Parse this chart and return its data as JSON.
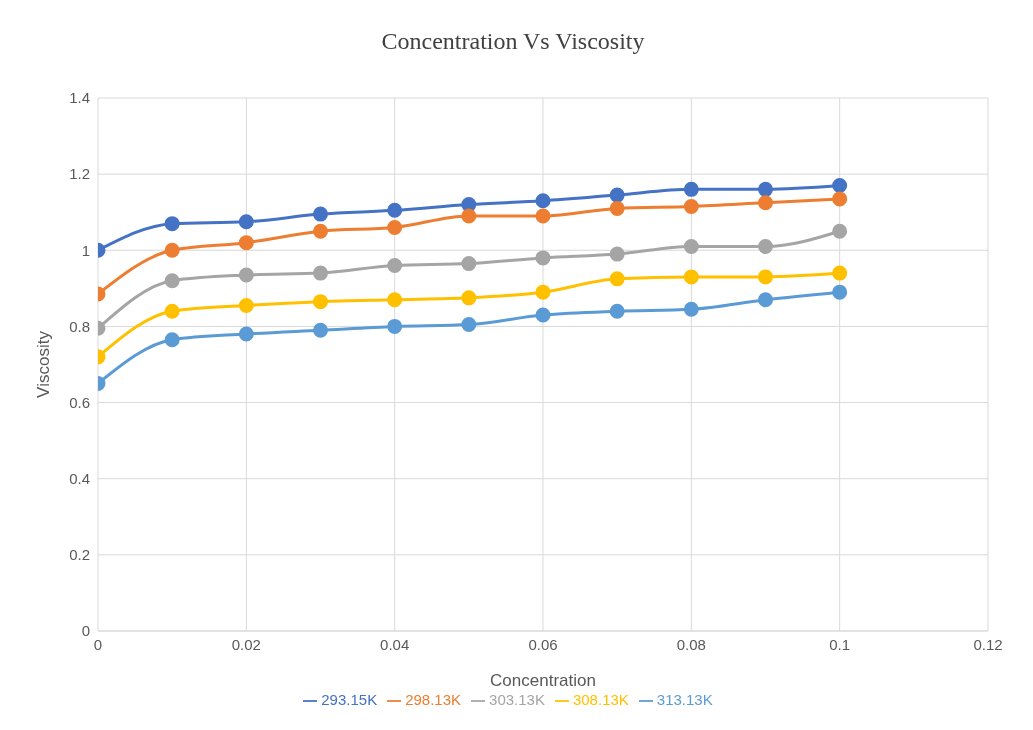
{
  "chart_data": {
    "type": "line",
    "title": "Concentration Vs Viscosity",
    "xlabel": "Concentration",
    "ylabel": "Viscosity",
    "x": [
      0,
      0.01,
      0.02,
      0.03,
      0.04,
      0.05,
      0.06,
      0.07,
      0.08,
      0.09,
      0.1
    ],
    "series": [
      {
        "name": "293.15K",
        "color": "#4472c4",
        "values": [
          1.0,
          1.07,
          1.075,
          1.095,
          1.105,
          1.12,
          1.13,
          1.145,
          1.16,
          1.16,
          1.17
        ]
      },
      {
        "name": "298.13K",
        "color": "#ed7d31",
        "values": [
          0.885,
          1.0,
          1.02,
          1.05,
          1.06,
          1.09,
          1.09,
          1.11,
          1.115,
          1.125,
          1.135
        ]
      },
      {
        "name": "303.13K",
        "color": "#a5a5a5",
        "values": [
          0.795,
          0.92,
          0.935,
          0.94,
          0.96,
          0.965,
          0.98,
          0.99,
          1.01,
          1.01,
          1.05
        ]
      },
      {
        "name": "308.13K",
        "color": "#ffc000",
        "values": [
          0.72,
          0.84,
          0.855,
          0.865,
          0.87,
          0.875,
          0.89,
          0.925,
          0.93,
          0.93,
          0.94
        ]
      },
      {
        "name": "313.13K",
        "color": "#5b9bd5",
        "values": [
          0.65,
          0.765,
          0.78,
          0.79,
          0.8,
          0.805,
          0.83,
          0.84,
          0.845,
          0.87,
          0.89
        ]
      }
    ],
    "xlim": [
      0,
      0.12
    ],
    "xticks": [
      0,
      0.02,
      0.04,
      0.06,
      0.08,
      0.1,
      0.12
    ],
    "ylim": [
      0,
      1.4
    ],
    "yticks": [
      0,
      0.2,
      0.4,
      0.6,
      0.8,
      1,
      1.2,
      1.4
    ],
    "grid": true,
    "legend": "bottom",
    "marker": "circle",
    "line_style": "solid"
  }
}
